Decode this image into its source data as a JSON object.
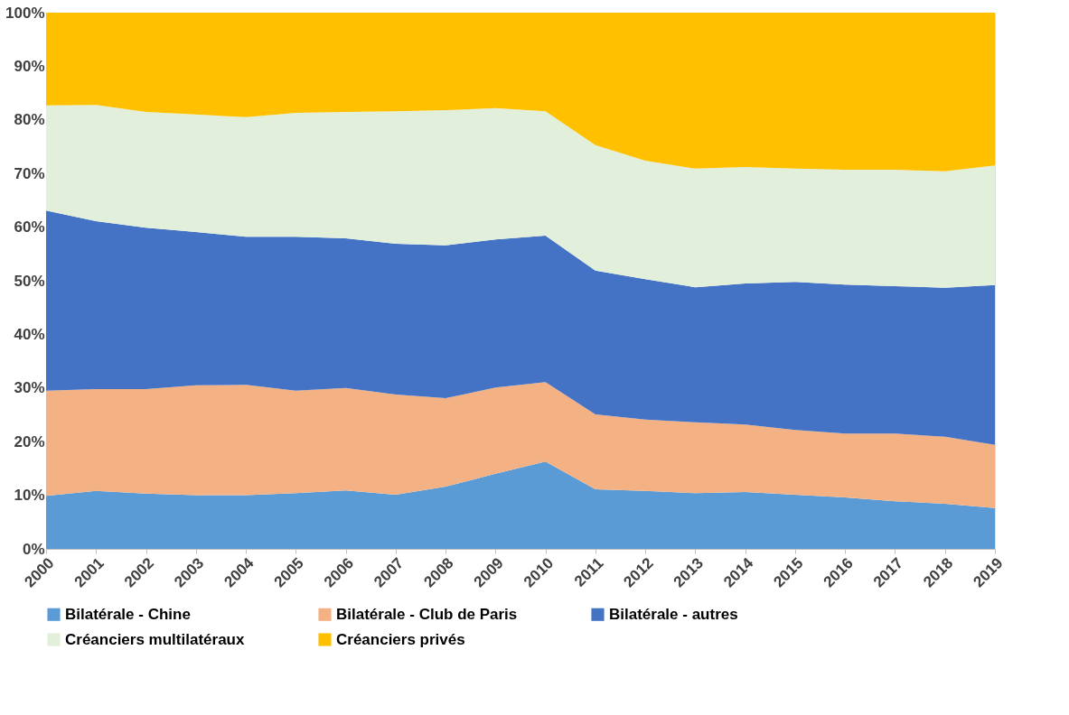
{
  "chart_data": {
    "type": "area",
    "stacked": true,
    "categories": [
      "2000",
      "2001",
      "2002",
      "2003",
      "2004",
      "2005",
      "2006",
      "2007",
      "2008",
      "2009",
      "2010",
      "2011",
      "2012",
      "2013",
      "2014",
      "2015",
      "2016",
      "2017",
      "2018",
      "2019"
    ],
    "series": [
      {
        "name": "Bilatérale - Chine",
        "color": "#5b9bd5",
        "values": [
          9.9,
          10.8,
          10.3,
          10.0,
          10.0,
          10.4,
          10.9,
          10.1,
          11.6,
          14.0,
          16.3,
          11.1,
          10.8,
          10.4,
          10.6,
          10.1,
          9.6,
          8.9,
          8.4,
          7.6
        ]
      },
      {
        "name": "Bilatérale - Club de Paris",
        "color": "#f4b183",
        "values": [
          19.6,
          19.0,
          19.5,
          20.5,
          20.6,
          19.1,
          19.1,
          18.7,
          16.5,
          16.1,
          14.8,
          14.0,
          13.3,
          13.2,
          12.6,
          12.1,
          11.9,
          12.6,
          12.5,
          11.8
        ]
      },
      {
        "name": "Bilatérale - autres",
        "color": "#4472c4",
        "values": [
          33.6,
          31.3,
          30.1,
          28.6,
          27.6,
          28.7,
          27.9,
          28.1,
          28.5,
          27.6,
          27.3,
          26.8,
          26.2,
          25.2,
          26.3,
          27.6,
          27.8,
          27.5,
          27.8,
          29.8
        ]
      },
      {
        "name": "Créanciers multilatéraux",
        "color": "#e2efda",
        "values": [
          19.6,
          21.7,
          21.6,
          21.9,
          22.3,
          23.1,
          23.6,
          24.7,
          25.2,
          24.5,
          23.2,
          23.4,
          22.1,
          22.1,
          21.7,
          21.1,
          21.4,
          21.7,
          21.7,
          22.3
        ]
      },
      {
        "name": "Créanciers privés",
        "color": "#ffc000",
        "values": [
          17.3,
          17.2,
          18.5,
          19.0,
          19.5,
          18.7,
          18.5,
          18.4,
          18.2,
          17.8,
          18.4,
          24.7,
          27.6,
          29.1,
          28.8,
          29.1,
          29.3,
          29.3,
          29.6,
          28.5
        ]
      }
    ],
    "ylim": [
      0,
      100
    ],
    "yticks": [
      {
        "value": 0,
        "label": "0%"
      },
      {
        "value": 10,
        "label": "10%"
      },
      {
        "value": 20,
        "label": "20%"
      },
      {
        "value": 30,
        "label": "30%"
      },
      {
        "value": 40,
        "label": "40%"
      },
      {
        "value": 50,
        "label": "50%"
      },
      {
        "value": 60,
        "label": "60%"
      },
      {
        "value": 70,
        "label": "70%"
      },
      {
        "value": 80,
        "label": "80%"
      },
      {
        "value": 90,
        "label": "90%"
      },
      {
        "value": 100,
        "label": "100%"
      }
    ],
    "grid": false,
    "legend": "bottom"
  }
}
